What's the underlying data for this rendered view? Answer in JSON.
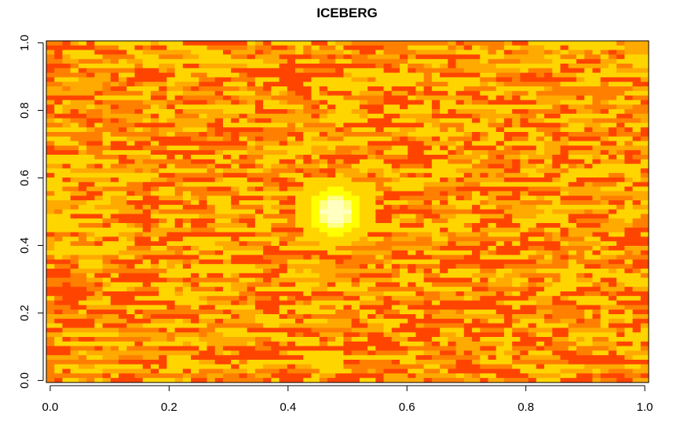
{
  "chart_data": {
    "type": "heatmap",
    "title": "ICEBERG",
    "xlabel": "",
    "ylabel": "",
    "xlim": [
      0,
      1
    ],
    "ylim": [
      0,
      1
    ],
    "x_ticks": [
      "0.0",
      "0.2",
      "0.4",
      "0.6",
      "0.8",
      "1.0"
    ],
    "y_ticks": [
      "0.0",
      "0.2",
      "0.4",
      "0.6",
      "0.8",
      "1.0"
    ],
    "grid_columns": 75,
    "grid_rows": 75,
    "colormap": [
      "#ff0000",
      "#ff4400",
      "#ff8000",
      "#ffaa00",
      "#ffd500",
      "#ffff00",
      "#ffff80",
      "#ffffc0"
    ],
    "legend": "none",
    "grid": false,
    "hotspot": {
      "x": 0.48,
      "y": 0.5,
      "description_value": "brightest region"
    }
  }
}
